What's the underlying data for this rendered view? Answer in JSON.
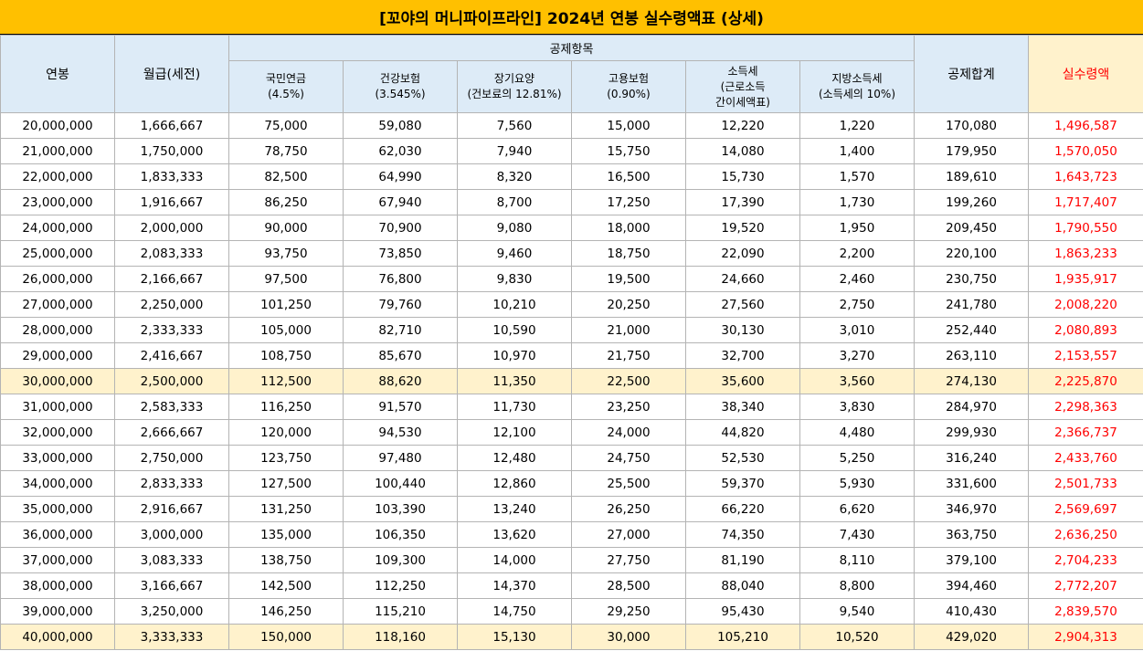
{
  "title": "[꼬야의 머니파이프라인] 2024년 연봉 실수령액표 (상세)",
  "headers": {
    "annual": "연봉",
    "monthly": "월급(세전)",
    "deduction_group": "공제항목",
    "pension": "국민연금",
    "pension_rate": "(4.5%)",
    "health": "건강보험",
    "health_rate": "(3.545%)",
    "ltc": "장기요양",
    "ltc_rate": "(건보료의 12.81%)",
    "employment": "고용보험",
    "employment_rate": "(0.90%)",
    "income_tax": "소득세",
    "income_tax_sub1": "(근로소득",
    "income_tax_sub2": "간이세액표)",
    "local_tax": "지방소득세",
    "local_tax_rate": "(소득세의 10%)",
    "total_deduction": "공제합계",
    "net_pay": "실수령액"
  },
  "highlight_color": "#fff2cc",
  "net_pay_color": "#ff0000",
  "rows": [
    [
      "20,000,000",
      "1,666,667",
      "75,000",
      "59,080",
      "7,560",
      "15,000",
      "12,220",
      "1,220",
      "170,080",
      "1,496,587"
    ],
    [
      "21,000,000",
      "1,750,000",
      "78,750",
      "62,030",
      "7,940",
      "15,750",
      "14,080",
      "1,400",
      "179,950",
      "1,570,050"
    ],
    [
      "22,000,000",
      "1,833,333",
      "82,500",
      "64,990",
      "8,320",
      "16,500",
      "15,730",
      "1,570",
      "189,610",
      "1,643,723"
    ],
    [
      "23,000,000",
      "1,916,667",
      "86,250",
      "67,940",
      "8,700",
      "17,250",
      "17,390",
      "1,730",
      "199,260",
      "1,717,407"
    ],
    [
      "24,000,000",
      "2,000,000",
      "90,000",
      "70,900",
      "9,080",
      "18,000",
      "19,520",
      "1,950",
      "209,450",
      "1,790,550"
    ],
    [
      "25,000,000",
      "2,083,333",
      "93,750",
      "73,850",
      "9,460",
      "18,750",
      "22,090",
      "2,200",
      "220,100",
      "1,863,233"
    ],
    [
      "26,000,000",
      "2,166,667",
      "97,500",
      "76,800",
      "9,830",
      "19,500",
      "24,660",
      "2,460",
      "230,750",
      "1,935,917"
    ],
    [
      "27,000,000",
      "2,250,000",
      "101,250",
      "79,760",
      "10,210",
      "20,250",
      "27,560",
      "2,750",
      "241,780",
      "2,008,220"
    ],
    [
      "28,000,000",
      "2,333,333",
      "105,000",
      "82,710",
      "10,590",
      "21,000",
      "30,130",
      "3,010",
      "252,440",
      "2,080,893"
    ],
    [
      "29,000,000",
      "2,416,667",
      "108,750",
      "85,670",
      "10,970",
      "21,750",
      "32,700",
      "3,270",
      "263,110",
      "2,153,557"
    ],
    [
      "30,000,000",
      "2,500,000",
      "112,500",
      "88,620",
      "11,350",
      "22,500",
      "35,600",
      "3,560",
      "274,130",
      "2,225,870"
    ],
    [
      "31,000,000",
      "2,583,333",
      "116,250",
      "91,570",
      "11,730",
      "23,250",
      "38,340",
      "3,830",
      "284,970",
      "2,298,363"
    ],
    [
      "32,000,000",
      "2,666,667",
      "120,000",
      "94,530",
      "12,100",
      "24,000",
      "44,820",
      "4,480",
      "299,930",
      "2,366,737"
    ],
    [
      "33,000,000",
      "2,750,000",
      "123,750",
      "97,480",
      "12,480",
      "24,750",
      "52,530",
      "5,250",
      "316,240",
      "2,433,760"
    ],
    [
      "34,000,000",
      "2,833,333",
      "127,500",
      "100,440",
      "12,860",
      "25,500",
      "59,370",
      "5,930",
      "331,600",
      "2,501,733"
    ],
    [
      "35,000,000",
      "2,916,667",
      "131,250",
      "103,390",
      "13,240",
      "26,250",
      "66,220",
      "6,620",
      "346,970",
      "2,569,697"
    ],
    [
      "36,000,000",
      "3,000,000",
      "135,000",
      "106,350",
      "13,620",
      "27,000",
      "74,350",
      "7,430",
      "363,750",
      "2,636,250"
    ],
    [
      "37,000,000",
      "3,083,333",
      "138,750",
      "109,300",
      "14,000",
      "27,750",
      "81,190",
      "8,110",
      "379,100",
      "2,704,233"
    ],
    [
      "38,000,000",
      "3,166,667",
      "142,500",
      "112,250",
      "14,370",
      "28,500",
      "88,040",
      "8,800",
      "394,460",
      "2,772,207"
    ],
    [
      "39,000,000",
      "3,250,000",
      "146,250",
      "115,210",
      "14,750",
      "29,250",
      "95,430",
      "9,540",
      "410,430",
      "2,839,570"
    ],
    [
      "40,000,000",
      "3,333,333",
      "150,000",
      "118,160",
      "15,130",
      "30,000",
      "105,210",
      "10,520",
      "429,020",
      "2,904,313"
    ]
  ],
  "highlighted_rows": [
    "30,000,000",
    "40,000,000"
  ]
}
